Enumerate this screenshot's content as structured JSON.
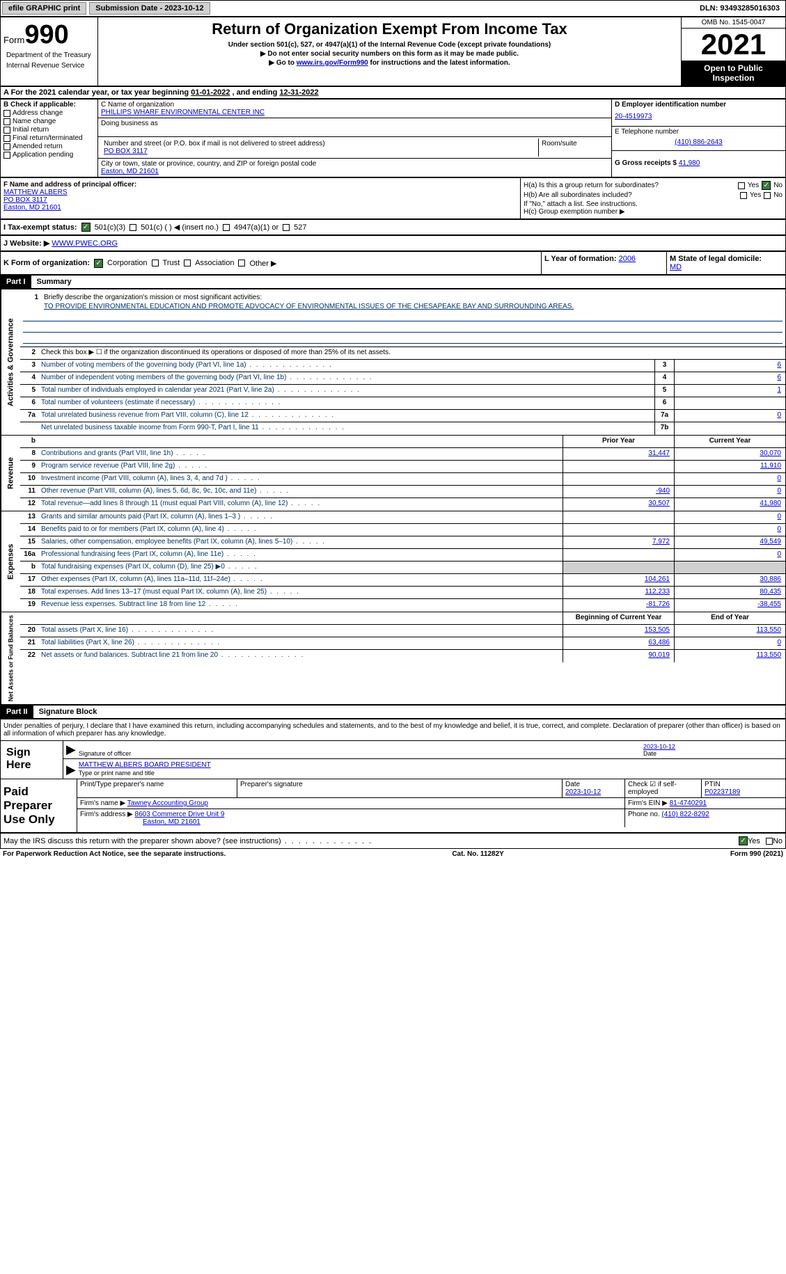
{
  "topbar": {
    "efile_label": "efile GRAPHIC print",
    "submission_label": "Submission Date - 2023-10-12",
    "dln": "DLN: 93493285016303"
  },
  "header": {
    "form_label": "Form",
    "form_number": "990",
    "dept1": "Department of the Treasury",
    "dept2": "Internal Revenue Service",
    "title": "Return of Organization Exempt From Income Tax",
    "subtitle": "Under section 501(c), 527, or 4947(a)(1) of the Internal Revenue Code (except private foundations)",
    "arrow1": "▶ Do not enter social security numbers on this form as it may be made public.",
    "arrow2_pre": "▶ Go to ",
    "arrow2_link": "www.irs.gov/Form990",
    "arrow2_post": " for instructions and the latest information.",
    "omb": "OMB No. 1545-0047",
    "year": "2021",
    "inspection": "Open to Public Inspection"
  },
  "period": {
    "label_a": "A For the 2021 calendar year, or tax year beginning ",
    "begin": "01-01-2022",
    "mid": "  , and ending ",
    "end": "12-31-2022"
  },
  "section_b": {
    "label": "B Check if applicable:",
    "options": [
      "Address change",
      "Name change",
      "Initial return",
      "Final return/terminated",
      "Amended return",
      "Application pending"
    ]
  },
  "section_c": {
    "name_label": "C Name of organization",
    "name": "PHILLIPS WHARF ENVIRONMENTAL CENTER INC",
    "dba_label": "Doing business as",
    "addr_label": "Number and street (or P.O. box if mail is not delivered to street address)",
    "room_label": "Room/suite",
    "addr": "PO BOX 3117",
    "city_label": "City or town, state or province, country, and ZIP or foreign postal code",
    "city": "Easton, MD  21601"
  },
  "section_d": {
    "ein_label": "D Employer identification number",
    "ein": "20-4519973",
    "phone_label": "E Telephone number",
    "phone": "(410) 886-2643",
    "gross_label": "G Gross receipts $",
    "gross": "41,980"
  },
  "section_f": {
    "label": "F  Name and address of principal officer:",
    "name": "MATTHEW ALBERS",
    "addr1": "PO BOX 3117",
    "addr2": "Easton, MD  21601"
  },
  "section_h": {
    "ha": "H(a)  Is this a group return for subordinates?",
    "hb": "H(b)  Are all subordinates included?",
    "hb_note": "If \"No,\" attach a list. See instructions.",
    "hc": "H(c)  Group exemption number ▶",
    "yes": "Yes",
    "no": "No"
  },
  "section_i": {
    "label": "I   Tax-exempt status:",
    "opt1": "501(c)(3)",
    "opt2": "501(c) (  ) ◀ (insert no.)",
    "opt3": "4947(a)(1) or",
    "opt4": "527"
  },
  "section_j": {
    "label": "J   Website: ▶",
    "value": "WWW.PWEC.ORG"
  },
  "section_k": {
    "label": "K Form of organization:",
    "opts": [
      "Corporation",
      "Trust",
      "Association",
      "Other ▶"
    ],
    "l_label": "L Year of formation:",
    "l_val": "2006",
    "m_label": "M State of legal domicile:",
    "m_val": "MD"
  },
  "part1": {
    "header": "Part I",
    "title": "Summary",
    "line1_label": "Briefly describe the organization's mission or most significant activities:",
    "line1_text": "TO PROVIDE ENVIRONMENTAL EDUCATION AND PROMOTE ADVOCACY OF ENVIRONMENTAL ISSUES OF THE CHESAPEAKE BAY AND SURROUNDING AREAS.",
    "line2": "Check this box ▶ ☐ if the organization discontinued its operations or disposed of more than 25% of its net assets.",
    "lines": [
      {
        "n": "3",
        "d": "Number of voting members of the governing body (Part VI, line 1a)",
        "box": "3",
        "v": "6"
      },
      {
        "n": "4",
        "d": "Number of independent voting members of the governing body (Part VI, line 1b)",
        "box": "4",
        "v": "6"
      },
      {
        "n": "5",
        "d": "Total number of individuals employed in calendar year 2021 (Part V, line 2a)",
        "box": "5",
        "v": "1"
      },
      {
        "n": "6",
        "d": "Total number of volunteers (estimate if necessary)",
        "box": "6",
        "v": ""
      },
      {
        "n": "7a",
        "d": "Total unrelated business revenue from Part VIII, column (C), line 12",
        "box": "7a",
        "v": "0"
      },
      {
        "n": "",
        "d": "Net unrelated business taxable income from Form 990-T, Part I, line 11",
        "box": "7b",
        "v": ""
      }
    ],
    "col_prior": "Prior Year",
    "col_current": "Current Year",
    "revenue": [
      {
        "n": "8",
        "d": "Contributions and grants (Part VIII, line 1h)",
        "p": "31,447",
        "c": "30,070"
      },
      {
        "n": "9",
        "d": "Program service revenue (Part VIII, line 2g)",
        "p": "",
        "c": "11,910"
      },
      {
        "n": "10",
        "d": "Investment income (Part VIII, column (A), lines 3, 4, and 7d )",
        "p": "",
        "c": "0"
      },
      {
        "n": "11",
        "d": "Other revenue (Part VIII, column (A), lines 5, 6d, 8c, 9c, 10c, and 11e)",
        "p": "-940",
        "c": "0"
      },
      {
        "n": "12",
        "d": "Total revenue—add lines 8 through 11 (must equal Part VIII, column (A), line 12)",
        "p": "30,507",
        "c": "41,980"
      }
    ],
    "expenses": [
      {
        "n": "13",
        "d": "Grants and similar amounts paid (Part IX, column (A), lines 1–3 )",
        "p": "",
        "c": "0"
      },
      {
        "n": "14",
        "d": "Benefits paid to or for members (Part IX, column (A), line 4)",
        "p": "",
        "c": "0"
      },
      {
        "n": "15",
        "d": "Salaries, other compensation, employee benefits (Part IX, column (A), lines 5–10)",
        "p": "7,972",
        "c": "49,549"
      },
      {
        "n": "16a",
        "d": "Professional fundraising fees (Part IX, column (A), line 11e)",
        "p": "",
        "c": "0"
      },
      {
        "n": "b",
        "d": "Total fundraising expenses (Part IX, column (D), line 25) ▶0",
        "p": "gray",
        "c": "gray"
      },
      {
        "n": "17",
        "d": "Other expenses (Part IX, column (A), lines 11a–11d, 11f–24e)",
        "p": "104,261",
        "c": "30,886"
      },
      {
        "n": "18",
        "d": "Total expenses. Add lines 13–17 (must equal Part IX, column (A), line 25)",
        "p": "112,233",
        "c": "80,435"
      },
      {
        "n": "19",
        "d": "Revenue less expenses. Subtract line 18 from line 12",
        "p": "-81,726",
        "c": "-38,455"
      }
    ],
    "col_begin": "Beginning of Current Year",
    "col_end": "End of Year",
    "netassets": [
      {
        "n": "20",
        "d": "Total assets (Part X, line 16)",
        "p": "153,505",
        "c": "113,550"
      },
      {
        "n": "21",
        "d": "Total liabilities (Part X, line 26)",
        "p": "63,486",
        "c": "0"
      },
      {
        "n": "22",
        "d": "Net assets or fund balances. Subtract line 21 from line 20",
        "p": "90,019",
        "c": "113,550"
      }
    ],
    "vtab_gov": "Activities & Governance",
    "vtab_rev": "Revenue",
    "vtab_exp": "Expenses",
    "vtab_net": "Net Assets or Fund Balances"
  },
  "part2": {
    "header": "Part II",
    "title": "Signature Block",
    "penalty": "Under penalties of perjury, I declare that I have examined this return, including accompanying schedules and statements, and to the best of my knowledge and belief, it is true, correct, and complete. Declaration of preparer (other than officer) is based on all information of which preparer has any knowledge.",
    "sign_here": "Sign Here",
    "sig_officer": "Signature of officer",
    "sig_date": "2023-10-12",
    "date_lbl": "Date",
    "officer_name": "MATTHEW ALBERS BOARD PRESIDENT",
    "officer_title_lbl": "Type or print name and title",
    "paid_label": "Paid Preparer Use Only",
    "prep_name_lbl": "Print/Type preparer's name",
    "prep_sig_lbl": "Preparer's signature",
    "prep_date_lbl": "Date",
    "prep_date": "2023-10-12",
    "check_lbl": "Check ☑ if self-employed",
    "ptin_lbl": "PTIN",
    "ptin": "P02237189",
    "firm_name_lbl": "Firm's name    ▶",
    "firm_name": "Tawney Accounting Group",
    "firm_ein_lbl": "Firm's EIN ▶",
    "firm_ein": "81-4740291",
    "firm_addr_lbl": "Firm's address ▶",
    "firm_addr1": "8603 Commerce Drive Unit 9",
    "firm_addr2": "Easton, MD  21601",
    "firm_phone_lbl": "Phone no.",
    "firm_phone": "(410) 822-8292",
    "discuss": "May the IRS discuss this return with the preparer shown above? (see instructions)",
    "yes": "Yes",
    "no": "No"
  },
  "footer": {
    "left": "For Paperwork Reduction Act Notice, see the separate instructions.",
    "center": "Cat. No. 11282Y",
    "right": "Form 990 (2021)"
  }
}
